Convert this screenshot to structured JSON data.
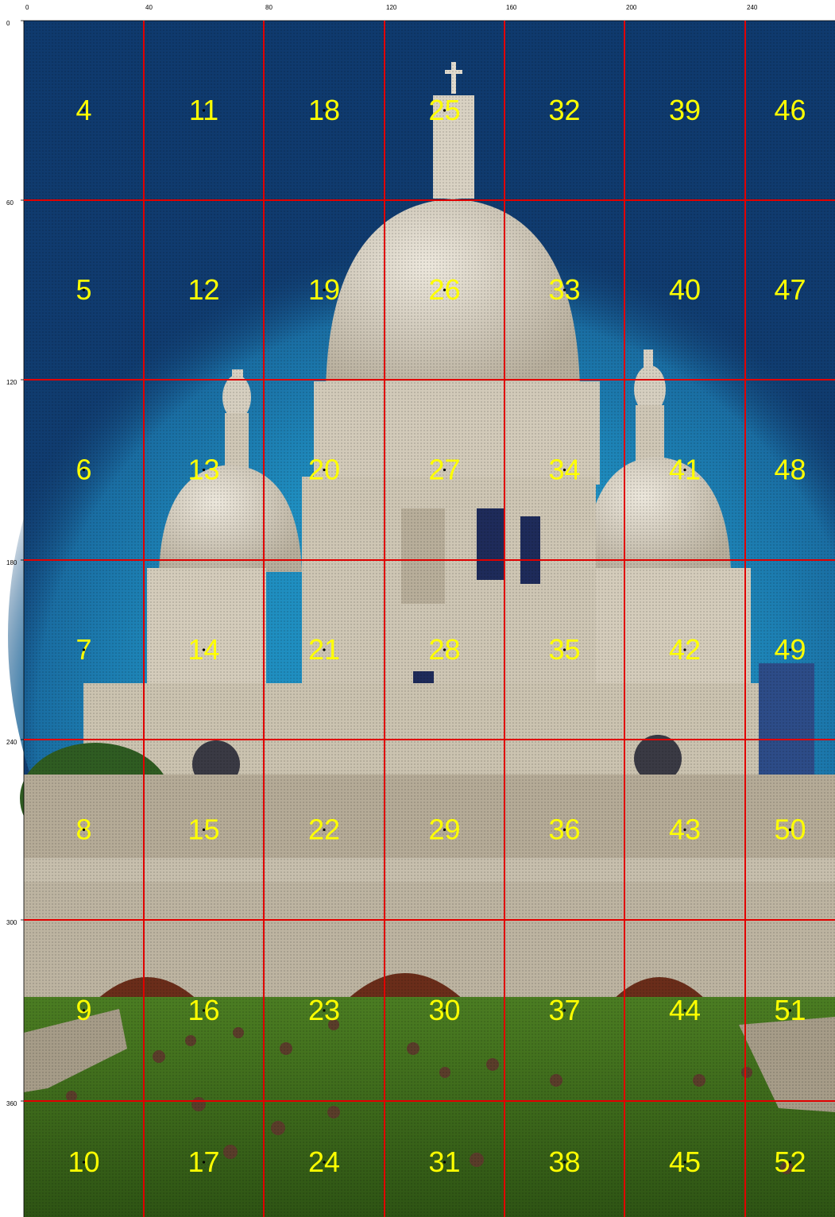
{
  "x_axis_ticks": [
    "0",
    "40",
    "80",
    "120",
    "160",
    "200",
    "240"
  ],
  "y_axis_ticks": [
    "0",
    "60",
    "120",
    "180",
    "240",
    "300",
    "360"
  ],
  "grid": {
    "columns": 7,
    "rows": 7,
    "line_color": "#e00000",
    "cell_numbers": [
      [
        "4",
        "11",
        "18",
        "25",
        "32",
        "39",
        "46"
      ],
      [
        "5",
        "12",
        "19",
        "26",
        "33",
        "40",
        "47"
      ],
      [
        "6",
        "13",
        "20",
        "27",
        "34",
        "41",
        "48"
      ],
      [
        "7",
        "14",
        "21",
        "28",
        "35",
        "42",
        "49"
      ],
      [
        "8",
        "15",
        "22",
        "29",
        "36",
        "43",
        "50"
      ],
      [
        "9",
        "16",
        "23",
        "30",
        "37",
        "44",
        "51"
      ],
      [
        "10",
        "17",
        "24",
        "31",
        "38",
        "45",
        "52"
      ]
    ],
    "number_color": "#ffff00"
  },
  "photo": {
    "subject": "domed basilica",
    "sky_color": "#0f3a6e",
    "halo_color": "#1d7fb0",
    "stone_color": "#cdc5b4",
    "lawn_color": "#3c6a1c"
  }
}
